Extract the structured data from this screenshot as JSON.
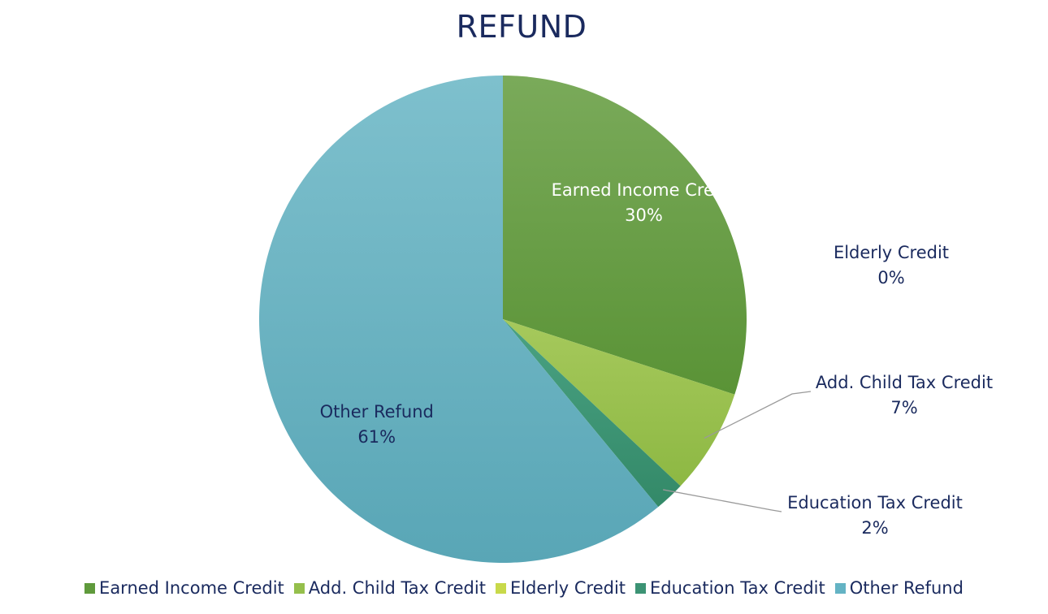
{
  "chart_data": {
    "type": "pie",
    "title": "REFUND",
    "categories": [
      "Earned Income Credit",
      "Add. Child Tax Credit",
      "Elderly Credit",
      "Education Tax Credit",
      "Other Refund"
    ],
    "values": [
      30,
      7,
      0,
      2,
      61
    ],
    "value_labels": [
      "30%",
      "7%",
      "0%",
      "2%",
      "61%"
    ],
    "colors": [
      "#5f9a3c",
      "#95bf4c",
      "#c8d94a",
      "#3c9374",
      "#64b3c4"
    ],
    "label_colors": [
      "#ffffff",
      "#1a2a5e",
      "#1a2a5e",
      "#1a2a5e",
      "#1a2a5e"
    ],
    "legend_position": "bottom"
  }
}
